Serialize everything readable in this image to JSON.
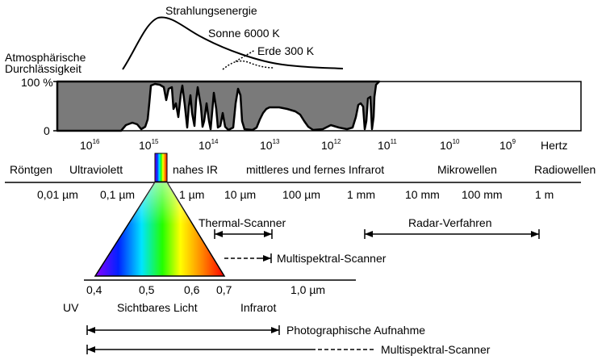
{
  "energy": {
    "title": "Strahlungsenergie",
    "sun_label": "Sonne 6000 K",
    "earth_label": "Erde 300 K"
  },
  "atmosphere": {
    "title_line1": "Atmosphärische",
    "title_line2": "Durchlässigkeit",
    "axis_top": "100 %",
    "axis_bottom": "0"
  },
  "frequency_axis": {
    "base": "10",
    "exponents": [
      "16",
      "15",
      "14",
      "13",
      "12",
      "11",
      "10",
      "9"
    ],
    "unit": "Hertz"
  },
  "bands": {
    "xray": "Röntgen",
    "uv": "Ultraviolett",
    "near_ir": "nahes IR",
    "mid_far_ir": "mittleres und fernes Infrarot",
    "microwave": "Mikrowellen",
    "radio": "Radiowellen"
  },
  "wavelength_axis": {
    "labels": [
      "0,01 µm",
      "0,1 µm",
      "1 µm",
      "10 µm",
      "100 µm",
      "1 mm",
      "10 mm",
      "100 mm",
      "1 m"
    ]
  },
  "sensors": {
    "thermal": "Thermal-Scanner",
    "radar": "Radar-Verfahren",
    "multispectral_ir": "Multispektral-Scanner",
    "photo": "Photographische Aufnahme",
    "multispectral": "Multispektral-Scanner"
  },
  "visible_axis": {
    "ticks": [
      "0,4",
      "0,5",
      "0,6",
      "0,7",
      "1,0 µm"
    ],
    "uv": "UV",
    "visible": "Sichtbares Licht",
    "infrared": "Infrarot"
  },
  "colors": {
    "absorption_fill": "#7a7a7a",
    "violet": "#8a00ff",
    "blue": "#0022ff",
    "cyan": "#00e5ff",
    "green": "#22ff00",
    "yellow": "#ffff00",
    "orange": "#ff8c00",
    "red": "#ff0000"
  }
}
